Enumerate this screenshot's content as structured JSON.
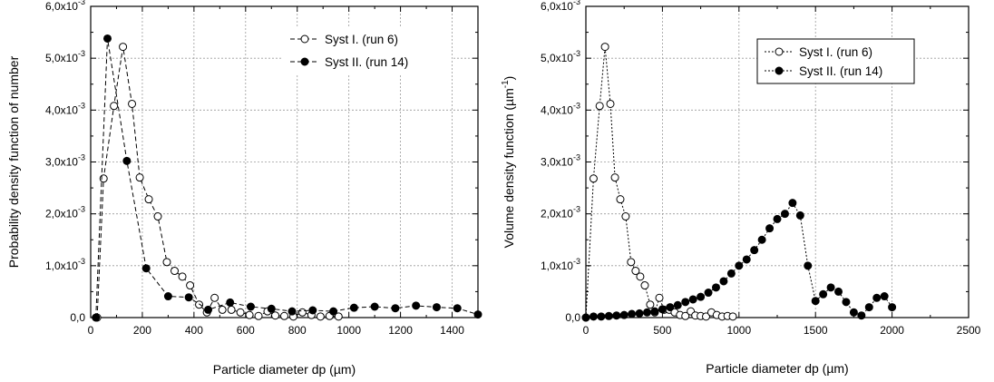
{
  "chart_data": [
    {
      "type": "line",
      "title": "",
      "xlabel": "Particle diameter dp (µm)",
      "ylabel": "Probability density function  of number",
      "xlim": [
        0,
        1500
      ],
      "ylim": [
        0,
        0.006
      ],
      "xticks": [
        0,
        200,
        400,
        600,
        800,
        1000,
        1200,
        1400
      ],
      "yticks": [
        {
          "v": 0,
          "mant": "0,0",
          "exp": ""
        },
        {
          "v": 0.001,
          "mant": "1,0x10",
          "exp": "-3"
        },
        {
          "v": 0.002,
          "mant": "2,0x10",
          "exp": "-3"
        },
        {
          "v": 0.003,
          "mant": "3,0x10",
          "exp": "-3"
        },
        {
          "v": 0.004,
          "mant": "4,0x10",
          "exp": "-3"
        },
        {
          "v": 0.005,
          "mant": "5,0x10",
          "exp": "-3"
        },
        {
          "v": 0.006,
          "mant": "6,0x10",
          "exp": "-3"
        }
      ],
      "grid": true,
      "legend_position": "top-right",
      "series": [
        {
          "name": "Syst I. (run 6)",
          "marker": "open-circle",
          "line": "dashed",
          "x": [
            25,
            50,
            90,
            125,
            160,
            190,
            225,
            260,
            295,
            325,
            355,
            385,
            420,
            450,
            480,
            510,
            545,
            580,
            615,
            650,
            685,
            715,
            750,
            785,
            820,
            855,
            890,
            925,
            960
          ],
          "y": [
            0,
            0.00268,
            0.00408,
            0.00522,
            0.00412,
            0.0027,
            0.00228,
            0.00195,
            0.00107,
            0.0009,
            0.00079,
            0.00062,
            0.00025,
            0.0001,
            0.00038,
            0.00015,
            0.00015,
            0.0001,
            5e-05,
            3e-05,
            0.00012,
            4e-05,
            3e-05,
            2e-05,
            0.0001,
            5e-05,
            2e-05,
            3e-05,
            2e-05
          ]
        },
        {
          "name": "Syst II. (run 14)",
          "marker": "filled-circle",
          "line": "dashed",
          "x": [
            20,
            65,
            140,
            215,
            300,
            380,
            455,
            540,
            620,
            700,
            780,
            860,
            940,
            1020,
            1100,
            1180,
            1260,
            1340,
            1420,
            1500
          ],
          "y": [
            0,
            0.00538,
            0.00302,
            0.00095,
            0.00041,
            0.00039,
            0.00015,
            0.00029,
            0.00021,
            0.00017,
            0.00012,
            0.00014,
            0.00012,
            0.00019,
            0.00021,
            0.00018,
            0.00023,
            0.0002,
            0.00018,
            6e-05
          ]
        }
      ]
    },
    {
      "type": "line",
      "title": "",
      "xlabel": "Particle diameter dp (µm)",
      "ylabel_main": "Volume density function (µm",
      "ylabel_sup": "-1",
      "ylabel_tail": ")",
      "xlim": [
        0,
        2500
      ],
      "ylim": [
        0,
        0.006
      ],
      "xticks": [
        0,
        500,
        1000,
        1500,
        2000,
        2500
      ],
      "yticks": [
        {
          "v": 0,
          "mant": "0,0",
          "exp": ""
        },
        {
          "v": 0.001,
          "mant": "1,0x10",
          "exp": "-3"
        },
        {
          "v": 0.002,
          "mant": "2,0x10",
          "exp": "-3"
        },
        {
          "v": 0.003,
          "mant": "3,0x10",
          "exp": "-3"
        },
        {
          "v": 0.004,
          "mant": "4,0x10",
          "exp": "-3"
        },
        {
          "v": 0.005,
          "mant": "5,0x10",
          "exp": "-3"
        },
        {
          "v": 0.006,
          "mant": "6,0x10",
          "exp": "-3"
        }
      ],
      "grid": true,
      "legend_position": "top-right",
      "series": [
        {
          "name": "Syst I. (run 6)",
          "marker": "open-circle",
          "line": "dotted",
          "x": [
            0,
            50,
            90,
            125,
            160,
            190,
            225,
            260,
            295,
            325,
            355,
            385,
            420,
            450,
            480,
            510,
            545,
            580,
            615,
            650,
            685,
            715,
            750,
            785,
            820,
            855,
            890,
            925,
            960
          ],
          "y": [
            0,
            0.00268,
            0.00408,
            0.00522,
            0.00412,
            0.0027,
            0.00228,
            0.00195,
            0.00107,
            0.0009,
            0.00079,
            0.00062,
            0.00025,
            0.0001,
            0.00038,
            0.00015,
            0.00015,
            0.0001,
            5e-05,
            3e-05,
            0.00012,
            4e-05,
            3e-05,
            2e-05,
            0.0001,
            5e-05,
            2e-05,
            3e-05,
            2e-05
          ]
        },
        {
          "name": "Syst II. (run 14)",
          "marker": "filled-circle",
          "line": "dotted",
          "x": [
            0,
            50,
            100,
            150,
            200,
            250,
            300,
            350,
            400,
            450,
            500,
            550,
            600,
            650,
            700,
            750,
            800,
            850,
            900,
            950,
            1000,
            1050,
            1100,
            1150,
            1200,
            1250,
            1300,
            1350,
            1400,
            1450,
            1500,
            1550,
            1600,
            1650,
            1700,
            1750,
            1800,
            1850,
            1900,
            1950,
            2000
          ],
          "y": [
            0,
            2e-05,
            2e-05,
            3e-05,
            4e-05,
            5e-05,
            7e-05,
            8e-05,
            0.0001,
            0.00012,
            0.00016,
            0.0002,
            0.00024,
            0.0003,
            0.00035,
            0.0004,
            0.00048,
            0.00058,
            0.0007,
            0.00085,
            0.001,
            0.00112,
            0.0013,
            0.0015,
            0.00172,
            0.0019,
            0.002,
            0.00221,
            0.00197,
            0.001,
            0.00032,
            0.00045,
            0.00058,
            0.0005,
            0.0003,
            0.0001,
            4e-05,
            0.0002,
            0.00038,
            0.00041,
            0.0002
          ]
        }
      ]
    }
  ]
}
